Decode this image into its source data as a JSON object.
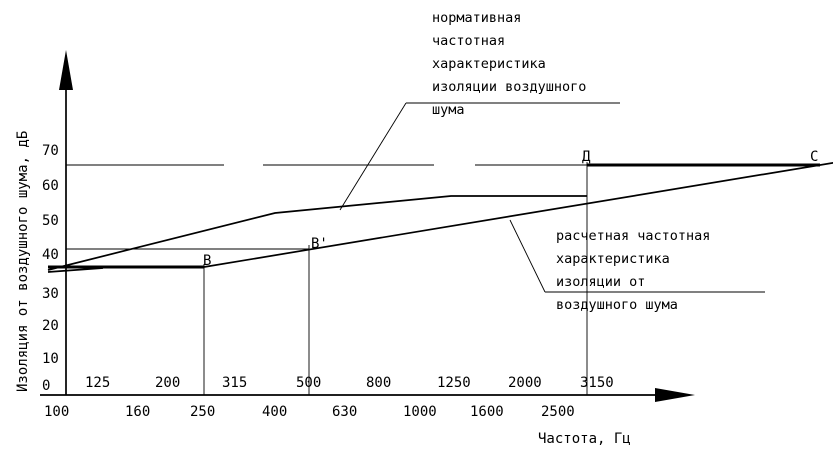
{
  "chart_data": {
    "type": "line",
    "ylabel": "Изоляция от воздушного шума, дБ",
    "xlabel": "Частота, Гц",
    "x_ticks_upper": [
      "125",
      "200",
      "315",
      "500",
      "800",
      "1250",
      "2000",
      "3150"
    ],
    "x_ticks_lower": [
      "100",
      "160",
      "250",
      "400",
      "630",
      "1000",
      "1600",
      "2500"
    ],
    "y_ticks": [
      "0",
      "10",
      "20",
      "30",
      "40",
      "50",
      "60",
      "70"
    ],
    "ylim": [
      0,
      70
    ],
    "points": {
      "B": {
        "label": "В",
        "x": 250,
        "y": 36
      },
      "B_prime": {
        "label": "В'",
        "x": 500,
        "y": 41
      },
      "D": {
        "label": "Д",
        "x": 3150,
        "y": 65
      },
      "C": {
        "label": "С",
        "x": 8000,
        "y": 65
      }
    },
    "series": [
      {
        "name": "нормативная частотная характеристика изоляции воздушного шума",
        "x": [
          100,
          400,
          1250,
          3150
        ],
        "y": [
          35,
          52,
          56,
          56
        ]
      },
      {
        "name": "расчетная частотная характеристика изоляции от воздушного шума",
        "x": [
          100,
          250,
          8000
        ],
        "y": [
          36,
          36,
          65
        ]
      }
    ],
    "annotations": {
      "normative": [
        "нормативная",
        "частотная",
        "характеристика",
        "изоляции воздушного",
        "шума"
      ],
      "calculated": [
        "расчетная частотная",
        "характеристика",
        "изоляции от",
        "воздушного шума"
      ]
    }
  }
}
